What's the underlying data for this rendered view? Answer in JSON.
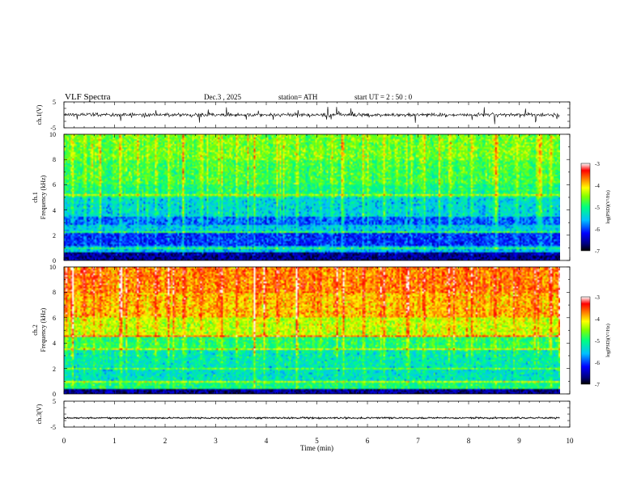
{
  "header": {
    "title": "VLF  Spectra",
    "date": "Dec.3  , 2025",
    "station": "station= ATH",
    "start": "start  UT  =   2  : 50 : 0"
  },
  "chart_data": [
    {
      "type": "line",
      "id": "ch1-waveform",
      "ylabel": "ch.1(V)",
      "ylim": [
        -5,
        5
      ],
      "y_ticks": [
        "5",
        "-5"
      ],
      "xlim": [
        0,
        10
      ],
      "line_color": "#000000",
      "range_x": [
        0,
        9.8
      ],
      "baseline": 0,
      "amplitude_typical": 0.7,
      "spike_amplitude_max": 3.2
    },
    {
      "type": "heatmap",
      "id": "ch1-spectrogram",
      "ylabel_top": "ch.1",
      "ylabel_bottom": "Frequency (kHz)",
      "ylim": [
        0,
        10
      ],
      "y_ticks": [
        "0",
        "2",
        "4",
        "6",
        "8",
        "10"
      ],
      "xlim": [
        0,
        10
      ],
      "data_range_x": [
        0,
        9.8
      ],
      "colorbar": {
        "label": "log(PSD)(V²/Hz)",
        "ticks": [
          "-3",
          "-4",
          "-5",
          "-6",
          "-7"
        ],
        "range": [
          -7,
          -3
        ]
      },
      "bands": [
        {
          "f": [
            8,
            10
          ],
          "level": -4.6
        },
        {
          "f": [
            6,
            8
          ],
          "level": -4.8
        },
        {
          "f": [
            5,
            6
          ],
          "level": -5.0
        },
        {
          "f": [
            3.5,
            5
          ],
          "level": -5.4
        },
        {
          "f": [
            2.8,
            3.5
          ],
          "level": -5.9
        },
        {
          "f": [
            2.2,
            2.8
          ],
          "level": -5.5
        },
        {
          "f": [
            1.2,
            2.2
          ],
          "level": -6.1
        },
        {
          "f": [
            0.6,
            1.2
          ],
          "level": -5.6
        },
        {
          "f": [
            0,
            0.6
          ],
          "level": -6.6
        }
      ],
      "lines_khz": [
        5.2,
        2.3,
        1.0
      ],
      "bursts_min": [
        0.15,
        0.4,
        0.7,
        1.1,
        1.45,
        1.8,
        2.05,
        2.35,
        2.7,
        3.1,
        3.4,
        3.75,
        4.2,
        4.6,
        5.05,
        5.5,
        5.9,
        6.3,
        6.75,
        7.1,
        7.6,
        8.05,
        8.5,
        8.95,
        9.35,
        9.6
      ]
    },
    {
      "type": "heatmap",
      "id": "ch2-spectrogram",
      "ylabel_top": "ch.2",
      "ylabel_bottom": "Frequency (kHz)",
      "ylim": [
        0,
        10
      ],
      "y_ticks": [
        "0",
        "2",
        "4",
        "6",
        "8",
        "10"
      ],
      "xlim": [
        0,
        10
      ],
      "data_range_x": [
        0,
        9.8
      ],
      "colorbar": {
        "label": "log(PSD)(V²/Hz)",
        "ticks": [
          "-3",
          "-4",
          "-5",
          "-6",
          "-7"
        ],
        "range": [
          -7,
          -3
        ]
      },
      "bands": [
        {
          "f": [
            8,
            10
          ],
          "level": -3.7
        },
        {
          "f": [
            6,
            8
          ],
          "level": -3.9
        },
        {
          "f": [
            4.5,
            6
          ],
          "level": -4.3
        },
        {
          "f": [
            3.5,
            4.5
          ],
          "level": -4.9
        },
        {
          "f": [
            2.2,
            3.5
          ],
          "level": -5.2
        },
        {
          "f": [
            1.0,
            2.2
          ],
          "level": -5.3
        },
        {
          "f": [
            0,
            1.0
          ],
          "level": -5.0
        }
      ],
      "lines_khz": [
        4.5,
        3.5,
        2.0,
        1.0
      ],
      "bursts_min": [
        0.15,
        0.4,
        0.7,
        1.1,
        1.45,
        1.8,
        2.05,
        2.35,
        2.7,
        3.1,
        3.4,
        3.75,
        4.2,
        4.6,
        5.05,
        5.5,
        5.9,
        6.3,
        6.75,
        7.1,
        7.6,
        8.05,
        8.5,
        8.95,
        9.35,
        9.6
      ]
    },
    {
      "type": "line",
      "id": "ch3-waveform",
      "ylabel": "ch.3(V)",
      "ylim": [
        -5,
        5
      ],
      "y_ticks": [
        "5",
        "-5"
      ],
      "xlim": [
        0,
        10
      ],
      "line_color": "#000000",
      "range_x": [
        0,
        9.8
      ],
      "baseline": -1.5,
      "amplitude_typical": 0.3
    }
  ],
  "x_axis": {
    "label": "Time  (min)",
    "ticks": [
      "0",
      "1",
      "2",
      "3",
      "4",
      "5",
      "6",
      "7",
      "8",
      "9",
      "10"
    ]
  }
}
